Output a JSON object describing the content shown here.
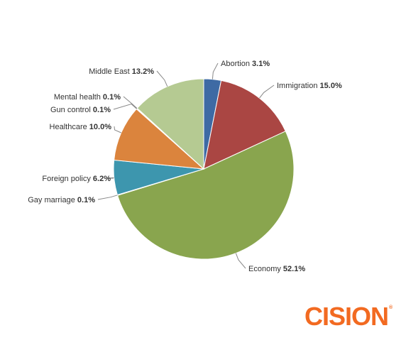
{
  "chart_data": {
    "type": "pie",
    "title": "",
    "slices": [
      {
        "label": "Abortion",
        "value": 3.1,
        "display": "3.1%",
        "color": "#3e6aa4"
      },
      {
        "label": "Immigration",
        "value": 15.0,
        "display": "15.0%",
        "color": "#aa4643"
      },
      {
        "label": "Economy",
        "value": 52.1,
        "display": "52.1%",
        "color": "#89a54e"
      },
      {
        "label": "Gay marriage",
        "value": 0.1,
        "display": "0.1%",
        "color": "#80699b"
      },
      {
        "label": "Foreign policy",
        "value": 6.2,
        "display": "6.2%",
        "color": "#3d96ae"
      },
      {
        "label": "Healthcare",
        "value": 10.0,
        "display": "10.0%",
        "color": "#db843d"
      },
      {
        "label": "Gun control",
        "value": 0.1,
        "display": "0.1%",
        "color": "#92a8cd"
      },
      {
        "label": "Mental health",
        "value": 0.1,
        "display": "0.1%",
        "color": "#a47d7c"
      },
      {
        "label": "Middle East",
        "value": 13.2,
        "display": "13.2%",
        "color": "#b5ca92"
      }
    ]
  },
  "brand": {
    "name": "CISION",
    "mark": "®",
    "color": "#f26a21"
  }
}
